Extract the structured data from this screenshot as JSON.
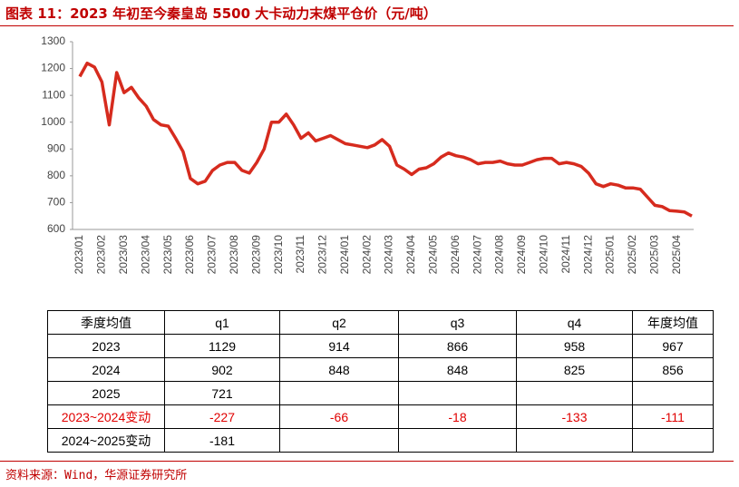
{
  "chart_data": {
    "type": "line",
    "title": "图表 11：2023 年初至今秦皇岛 5500 大卡动力末煤平仓价（元/吨）",
    "categories": [
      "2023/01",
      null,
      null,
      "2023/02",
      null,
      null,
      "2023/03",
      null,
      null,
      "2023/04",
      null,
      null,
      "2023/05",
      null,
      null,
      "2023/06",
      null,
      null,
      "2023/07",
      null,
      null,
      "2023/08",
      null,
      null,
      "2023/09",
      null,
      null,
      "2023/10",
      null,
      null,
      "2023/11",
      null,
      null,
      "2023/12",
      null,
      null,
      "2024/01",
      null,
      null,
      "2024/02",
      null,
      null,
      "2024/03",
      null,
      null,
      "2024/04",
      null,
      null,
      "2024/05",
      null,
      null,
      "2024/06",
      null,
      null,
      "2024/07",
      null,
      null,
      "2024/08",
      null,
      null,
      "2024/09",
      null,
      null,
      "2024/10",
      null,
      null,
      "2024/11",
      null,
      null,
      "2024/12",
      null,
      null,
      "2025/01",
      null,
      null,
      "2025/02",
      null,
      null,
      "2025/03",
      null,
      null,
      "2025/04",
      null,
      null
    ],
    "values": [
      1170,
      1220,
      1205,
      1150,
      990,
      1185,
      1110,
      1130,
      1090,
      1060,
      1010,
      990,
      985,
      940,
      890,
      790,
      770,
      780,
      820,
      840,
      850,
      850,
      820,
      810,
      850,
      900,
      1000,
      1000,
      1030,
      990,
      940,
      960,
      930,
      940,
      950,
      935,
      920,
      915,
      910,
      905,
      915,
      935,
      910,
      840,
      825,
      805,
      825,
      830,
      845,
      870,
      885,
      875,
      870,
      860,
      845,
      850,
      850,
      855,
      845,
      840,
      840,
      850,
      860,
      865,
      865,
      845,
      850,
      845,
      835,
      810,
      770,
      760,
      770,
      765,
      755,
      755,
      750,
      720,
      690,
      685,
      670,
      668,
      665,
      650
    ],
    "color": "#d62b1e",
    "ylim": [
      600,
      1300
    ],
    "yticks": [
      600,
      700,
      800,
      900,
      1000,
      1100,
      1200,
      1300
    ],
    "grid": false
  },
  "table": {
    "rows": [
      [
        "季度均值",
        "q1",
        "q2",
        "q3",
        "q4",
        "年度均值"
      ],
      [
        "2023",
        1129,
        914,
        866,
        958,
        967
      ],
      [
        "2024",
        902,
        848,
        848,
        825,
        856
      ],
      [
        "2025",
        721
      ],
      [
        "2023~2024变动",
        -227,
        -66,
        -18,
        -133,
        -111
      ],
      [
        "2024~2025变动",
        -181
      ]
    ]
  },
  "source": "资料来源：Wind，华源证券研究所"
}
